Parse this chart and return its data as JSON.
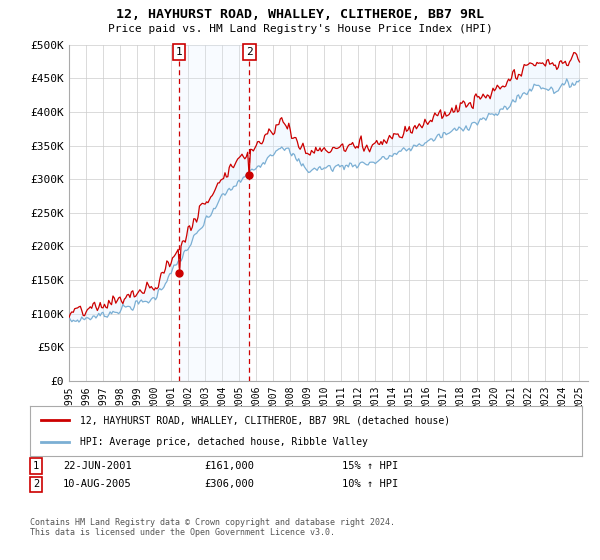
{
  "title1": "12, HAYHURST ROAD, WHALLEY, CLITHEROE, BB7 9RL",
  "title2": "Price paid vs. HM Land Registry's House Price Index (HPI)",
  "ylabel_ticks": [
    "£0",
    "£50K",
    "£100K",
    "£150K",
    "£200K",
    "£250K",
    "£300K",
    "£350K",
    "£400K",
    "£450K",
    "£500K"
  ],
  "ylim": [
    0,
    500000
  ],
  "xlim_start": 1995.0,
  "xlim_end": 2025.5,
  "legend_label_red": "12, HAYHURST ROAD, WHALLEY, CLITHEROE, BB7 9RL (detached house)",
  "legend_label_blue": "HPI: Average price, detached house, Ribble Valley",
  "transaction1_date": 2001.47,
  "transaction1_price": 161000,
  "transaction1_label": "1",
  "transaction2_date": 2005.6,
  "transaction2_price": 306000,
  "transaction2_label": "2",
  "footnote": "Contains HM Land Registry data © Crown copyright and database right 2024.\nThis data is licensed under the Open Government Licence v3.0.",
  "red_color": "#cc0000",
  "blue_color": "#7bafd4",
  "shading_color": "#ddeeff",
  "grid_color": "#cccccc",
  "background_color": "#ffffff"
}
